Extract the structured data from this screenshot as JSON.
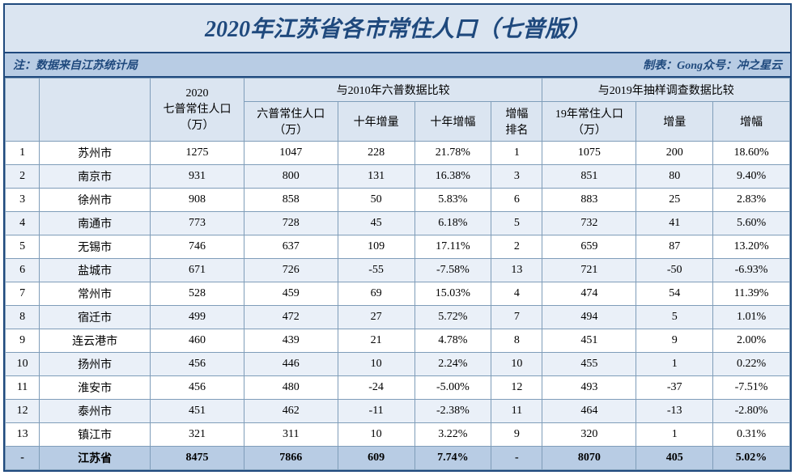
{
  "title": "2020年江苏省各市常住人口（七普版）",
  "note_left": "注：数据来自江苏统计局",
  "note_right": "制表：Gong众号：冲之星云",
  "headers": {
    "pop2020": "2020\n七普常住人口\n（万）",
    "group2010": "与2010年六普数据比较",
    "group2019": "与2019年抽样调查数据比较",
    "pop2010": "六普常住人口\n（万）",
    "inc10": "十年增量",
    "pct10": "十年增幅",
    "rank10": "增幅\n排名",
    "pop2019": "19年常住人口\n（万）",
    "inc19": "增量",
    "pct19": "增幅"
  },
  "rows": [
    {
      "rank": "1",
      "city": "苏州市",
      "p2020": "1275",
      "p2010": "1047",
      "inc10": "228",
      "pct10": "21.78%",
      "rk10": "1",
      "p2019": "1075",
      "inc19": "200",
      "pct19": "18.60%"
    },
    {
      "rank": "2",
      "city": "南京市",
      "p2020": "931",
      "p2010": "800",
      "inc10": "131",
      "pct10": "16.38%",
      "rk10": "3",
      "p2019": "851",
      "inc19": "80",
      "pct19": "9.40%"
    },
    {
      "rank": "3",
      "city": "徐州市",
      "p2020": "908",
      "p2010": "858",
      "inc10": "50",
      "pct10": "5.83%",
      "rk10": "6",
      "p2019": "883",
      "inc19": "25",
      "pct19": "2.83%"
    },
    {
      "rank": "4",
      "city": "南通市",
      "p2020": "773",
      "p2010": "728",
      "inc10": "45",
      "pct10": "6.18%",
      "rk10": "5",
      "p2019": "732",
      "inc19": "41",
      "pct19": "5.60%"
    },
    {
      "rank": "5",
      "city": "无锡市",
      "p2020": "746",
      "p2010": "637",
      "inc10": "109",
      "pct10": "17.11%",
      "rk10": "2",
      "p2019": "659",
      "inc19": "87",
      "pct19": "13.20%"
    },
    {
      "rank": "6",
      "city": "盐城市",
      "p2020": "671",
      "p2010": "726",
      "inc10": "-55",
      "pct10": "-7.58%",
      "rk10": "13",
      "p2019": "721",
      "inc19": "-50",
      "pct19": "-6.93%"
    },
    {
      "rank": "7",
      "city": "常州市",
      "p2020": "528",
      "p2010": "459",
      "inc10": "69",
      "pct10": "15.03%",
      "rk10": "4",
      "p2019": "474",
      "inc19": "54",
      "pct19": "11.39%"
    },
    {
      "rank": "8",
      "city": "宿迁市",
      "p2020": "499",
      "p2010": "472",
      "inc10": "27",
      "pct10": "5.72%",
      "rk10": "7",
      "p2019": "494",
      "inc19": "5",
      "pct19": "1.01%"
    },
    {
      "rank": "9",
      "city": "连云港市",
      "p2020": "460",
      "p2010": "439",
      "inc10": "21",
      "pct10": "4.78%",
      "rk10": "8",
      "p2019": "451",
      "inc19": "9",
      "pct19": "2.00%"
    },
    {
      "rank": "10",
      "city": "扬州市",
      "p2020": "456",
      "p2010": "446",
      "inc10": "10",
      "pct10": "2.24%",
      "rk10": "10",
      "p2019": "455",
      "inc19": "1",
      "pct19": "0.22%"
    },
    {
      "rank": "11",
      "city": "淮安市",
      "p2020": "456",
      "p2010": "480",
      "inc10": "-24",
      "pct10": "-5.00%",
      "rk10": "12",
      "p2019": "493",
      "inc19": "-37",
      "pct19": "-7.51%"
    },
    {
      "rank": "12",
      "city": "泰州市",
      "p2020": "451",
      "p2010": "462",
      "inc10": "-11",
      "pct10": "-2.38%",
      "rk10": "11",
      "p2019": "464",
      "inc19": "-13",
      "pct19": "-2.80%"
    },
    {
      "rank": "13",
      "city": "镇江市",
      "p2020": "321",
      "p2010": "311",
      "inc10": "10",
      "pct10": "3.22%",
      "rk10": "9",
      "p2019": "320",
      "inc19": "1",
      "pct19": "0.31%"
    }
  ],
  "total": {
    "rank": "-",
    "city": "江苏省",
    "p2020": "8475",
    "p2010": "7866",
    "inc10": "609",
    "pct10": "7.74%",
    "rk10": "-",
    "p2019": "8070",
    "inc19": "405",
    "pct19": "5.02%"
  },
  "style": {
    "title_color": "#1f497d",
    "border_color": "#1f497d",
    "cell_border": "#7f9db9",
    "header_bg": "#dbe5f1",
    "note_bg": "#b8cce4",
    "row_odd_bg": "#ffffff",
    "row_even_bg": "#eaf0f8",
    "total_bg": "#b8cce4",
    "title_fontsize": 28,
    "cell_fontsize": 14
  }
}
